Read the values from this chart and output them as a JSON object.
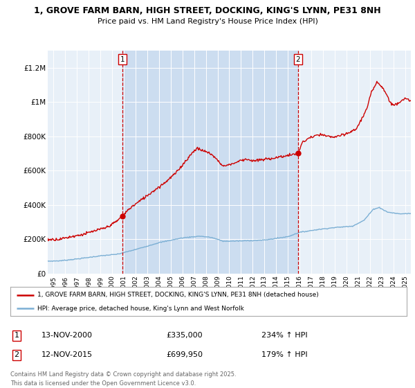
{
  "title_line1": "1, GROVE FARM BARN, HIGH STREET, DOCKING, KING'S LYNN, PE31 8NH",
  "title_line2": "Price paid vs. HM Land Registry's House Price Index (HPI)",
  "bg_color": "#e8f0f8",
  "shade_color": "#ccddf0",
  "red_line_color": "#cc0000",
  "blue_line_color": "#7bafd4",
  "vline_color": "#cc0000",
  "ylabel_ticks": [
    "£0",
    "£200K",
    "£400K",
    "£600K",
    "£800K",
    "£1M",
    "£1.2M"
  ],
  "ytick_vals": [
    0,
    200000,
    400000,
    600000,
    800000,
    1000000,
    1200000
  ],
  "ylim": [
    0,
    1300000
  ],
  "xlim_start": 1994.5,
  "xlim_end": 2025.5,
  "marker1_x": 2000.87,
  "marker1_y": 335000,
  "marker2_x": 2015.87,
  "marker2_y": 699950,
  "marker1_date": "13-NOV-2000",
  "marker1_price": "£335,000",
  "marker1_hpi": "234% ↑ HPI",
  "marker2_date": "12-NOV-2015",
  "marker2_price": "£699,950",
  "marker2_hpi": "179% ↑ HPI",
  "legend_line1": "1, GROVE FARM BARN, HIGH STREET, DOCKING, KING'S LYNN, PE31 8NH (detached house)",
  "legend_line2": "HPI: Average price, detached house, King's Lynn and West Norfolk",
  "footer_line1": "Contains HM Land Registry data © Crown copyright and database right 2025.",
  "footer_line2": "This data is licensed under the Open Government Licence v3.0.",
  "xticks": [
    1995,
    1996,
    1997,
    1998,
    1999,
    2000,
    2001,
    2002,
    2003,
    2004,
    2005,
    2006,
    2007,
    2008,
    2009,
    2010,
    2011,
    2012,
    2013,
    2014,
    2015,
    2016,
    2017,
    2018,
    2019,
    2020,
    2021,
    2022,
    2023,
    2024,
    2025
  ]
}
